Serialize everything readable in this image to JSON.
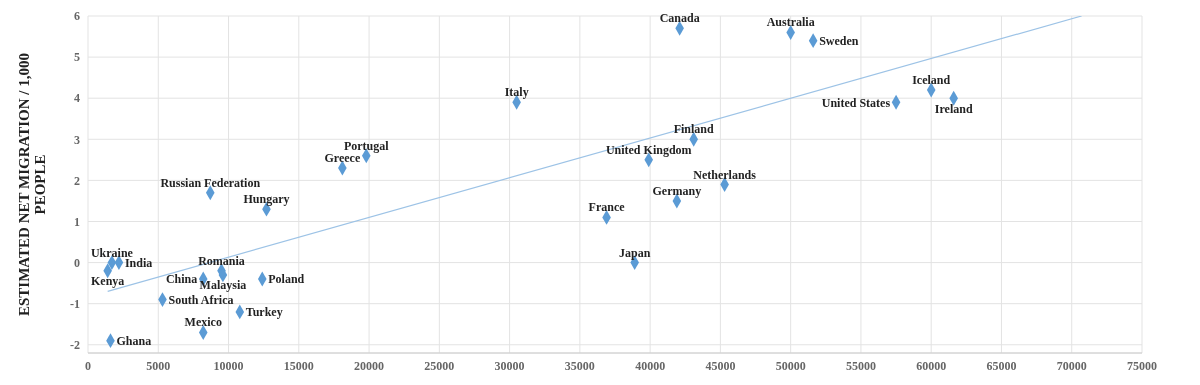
{
  "chart_data": {
    "type": "scatter",
    "ylabel": "ESTIMATED NET MIGRATION / 1,000 PEOPLE",
    "xlim": [
      0,
      75000
    ],
    "xticks": [
      0,
      5000,
      10000,
      15000,
      20000,
      25000,
      30000,
      35000,
      40000,
      45000,
      50000,
      55000,
      60000,
      65000,
      70000,
      75000
    ],
    "ylim": [
      -2.2,
      6
    ],
    "yticks": [
      -2,
      -1,
      0,
      1,
      2,
      3,
      4,
      5,
      6
    ],
    "grid": true,
    "series": [
      {
        "marker": "diamond",
        "color": "#5b9bd5",
        "x": [
          1700,
          2200,
          1400,
          8700,
          12700,
          18100,
          19800,
          9500,
          8200,
          9600,
          12400,
          5300,
          10800,
          8200,
          1600,
          30500,
          42100,
          50000,
          51600,
          43100,
          39900,
          45300,
          41900,
          36900,
          38900,
          57500,
          60000,
          61600
        ],
        "values": [
          0,
          0,
          -0.2,
          1.7,
          1.3,
          2.3,
          2.6,
          -0.2,
          -0.4,
          -0.3,
          -0.4,
          -0.9,
          -1.2,
          -1.7,
          -1.9,
          3.9,
          5.7,
          5.6,
          5.4,
          3.0,
          2.5,
          1.9,
          1.5,
          1.1,
          0,
          3.9,
          4.2,
          4.0
        ]
      },
      {
        "type": "line",
        "color": "#9dc3e6",
        "x": [
          1400,
          70700
        ],
        "values": [
          -0.7,
          6.0
        ]
      }
    ],
    "annotations": [
      {
        "text": "Ukraine",
        "x": 1700,
        "y": 0
      },
      {
        "text": "India",
        "x": 2200,
        "y": 0
      },
      {
        "text": "Kenya",
        "x": 1400,
        "y": -0.2
      },
      {
        "text": "Russian Federation",
        "x": 8700,
        "y": 1.7
      },
      {
        "text": "Hungary",
        "x": 12700,
        "y": 1.3
      },
      {
        "text": "Greece",
        "x": 18100,
        "y": 2.3
      },
      {
        "text": "Portugal",
        "x": 19800,
        "y": 2.6
      },
      {
        "text": "Romania",
        "x": 9500,
        "y": -0.2
      },
      {
        "text": "China",
        "x": 8200,
        "y": -0.4
      },
      {
        "text": "Malaysia",
        "x": 9600,
        "y": -0.3
      },
      {
        "text": "Poland",
        "x": 12400,
        "y": -0.4
      },
      {
        "text": "South Africa",
        "x": 5300,
        "y": -0.9
      },
      {
        "text": "Turkey",
        "x": 10800,
        "y": -1.2
      },
      {
        "text": "Mexico",
        "x": 8200,
        "y": -1.7
      },
      {
        "text": "Ghana",
        "x": 1600,
        "y": -1.9
      },
      {
        "text": "Italy",
        "x": 30500,
        "y": 3.9
      },
      {
        "text": "Canada",
        "x": 42100,
        "y": 5.7
      },
      {
        "text": "Australia",
        "x": 50000,
        "y": 5.6
      },
      {
        "text": "Sweden",
        "x": 51600,
        "y": 5.4
      },
      {
        "text": "Finland",
        "x": 43100,
        "y": 3.0
      },
      {
        "text": "United Kingdom",
        "x": 39900,
        "y": 2.5
      },
      {
        "text": "Netherlands",
        "x": 45300,
        "y": 1.9
      },
      {
        "text": "Germany",
        "x": 41900,
        "y": 1.5
      },
      {
        "text": "France",
        "x": 36900,
        "y": 1.1
      },
      {
        "text": "Japan",
        "x": 38900,
        "y": 0
      },
      {
        "text": "United States",
        "x": 57500,
        "y": 3.9
      },
      {
        "text": "Iceland",
        "x": 60000,
        "y": 4.2
      },
      {
        "text": "Ireland",
        "x": 61600,
        "y": 4.0
      }
    ]
  }
}
